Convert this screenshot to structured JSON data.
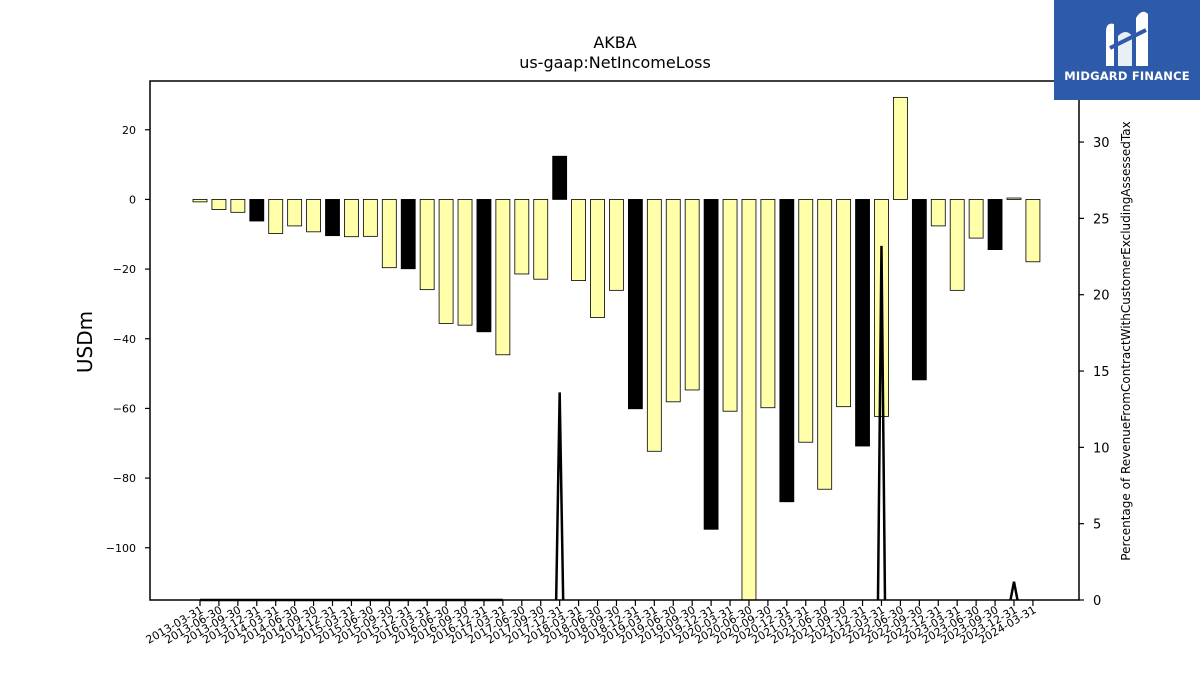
{
  "chart_data": {
    "type": "bar",
    "title": "AKBA",
    "subtitle": "us-gaap:NetIncomeLoss",
    "ylabel": "USDm",
    "y2label": "Percentage of RevenueFromContractWithCustomerExcludingAssessedTax",
    "ylim": [
      -115,
      34
    ],
    "y2lim": [
      0,
      34
    ],
    "yticks": [
      20,
      0,
      -20,
      -40,
      -60,
      -80,
      -100
    ],
    "y2ticks": [
      0,
      5,
      10,
      15,
      20,
      25,
      30
    ],
    "categories": [
      "2013-03-31",
      "2013-06-30",
      "2013-09-30",
      "2013-12-31",
      "2014-03-31",
      "2014-06-30",
      "2014-09-30",
      "2014-12-31",
      "2015-03-31",
      "2015-06-30",
      "2015-09-30",
      "2015-12-31",
      "2016-03-31",
      "2016-06-30",
      "2016-09-30",
      "2016-12-31",
      "2017-03-31",
      "2017-06-30",
      "2017-09-30",
      "2017-12-31",
      "2018-03-31",
      "2018-06-30",
      "2018-09-30",
      "2018-12-31",
      "2019-03-31",
      "2019-06-30",
      "2019-09-30",
      "2019-12-31",
      "2020-03-31",
      "2020-06-30",
      "2020-09-30",
      "2020-12-31",
      "2021-03-31",
      "2021-06-30",
      "2021-09-30",
      "2021-12-31",
      "2022-03-31",
      "2022-06-30",
      "2022-09-30",
      "2022-12-31",
      "2023-03-31",
      "2023-06-30",
      "2023-09-30",
      "2023-12-31",
      "2024-03-31"
    ],
    "values": [
      -0.7,
      -2.9,
      -3.7,
      -6.2,
      -9.8,
      -7.6,
      -9.3,
      -10.4,
      -10.7,
      -10.6,
      -19.6,
      -19.9,
      -25.9,
      -35.6,
      -36.1,
      -38.0,
      -44.6,
      -21.4,
      -22.9,
      12.4,
      -23.3,
      -33.9,
      -26.1,
      -60.1,
      -72.3,
      -58.1,
      -54.7,
      -94.7,
      -60.8,
      -115.0,
      -59.8,
      -86.8,
      -69.7,
      -83.2,
      -59.5,
      -70.8,
      -62.3,
      29.3,
      -51.8,
      -7.6,
      -26.1,
      -11.1,
      -14.4,
      0.4,
      -17.9
    ],
    "bar_colors": [
      "#ffffaa",
      "#ffffaa",
      "#ffffaa",
      "#000000",
      "#ffffaa",
      "#ffffaa",
      "#ffffaa",
      "#000000",
      "#ffffaa",
      "#ffffaa",
      "#ffffaa",
      "#000000",
      "#ffffaa",
      "#ffffaa",
      "#ffffaa",
      "#000000",
      "#ffffaa",
      "#ffffaa",
      "#ffffaa",
      "#000000",
      "#ffffaa",
      "#ffffaa",
      "#ffffaa",
      "#000000",
      "#ffffaa",
      "#ffffaa",
      "#ffffaa",
      "#000000",
      "#ffffaa",
      "#ffffaa",
      "#ffffaa",
      "#000000",
      "#ffffaa",
      "#ffffaa",
      "#ffffaa",
      "#000000",
      "#ffffaa",
      "#ffffaa",
      "#000000",
      "#ffffaa",
      "#ffffaa",
      "#ffffaa",
      "#000000",
      "#ffffaa",
      "#ffffaa"
    ],
    "line_series": {
      "name": "Percentage of RevenueFromContractWithCustomerExcludingAssessedTax",
      "color": "#000000",
      "values": [
        0,
        0,
        0,
        0,
        0,
        0,
        0,
        0,
        0,
        0,
        0,
        0,
        0,
        0,
        0,
        0,
        0,
        null,
        null,
        13.6,
        null,
        null,
        null,
        null,
        null,
        null,
        null,
        null,
        null,
        null,
        null,
        null,
        null,
        null,
        null,
        null,
        23.2,
        null,
        null,
        null,
        null,
        null,
        null,
        1.2,
        null
      ]
    },
    "grid": false,
    "legend": "none"
  },
  "logo": {
    "text": "MIDGARD FINANCE",
    "icon": "midgard-logo-icon",
    "bg_color": "#2d5ba9"
  }
}
